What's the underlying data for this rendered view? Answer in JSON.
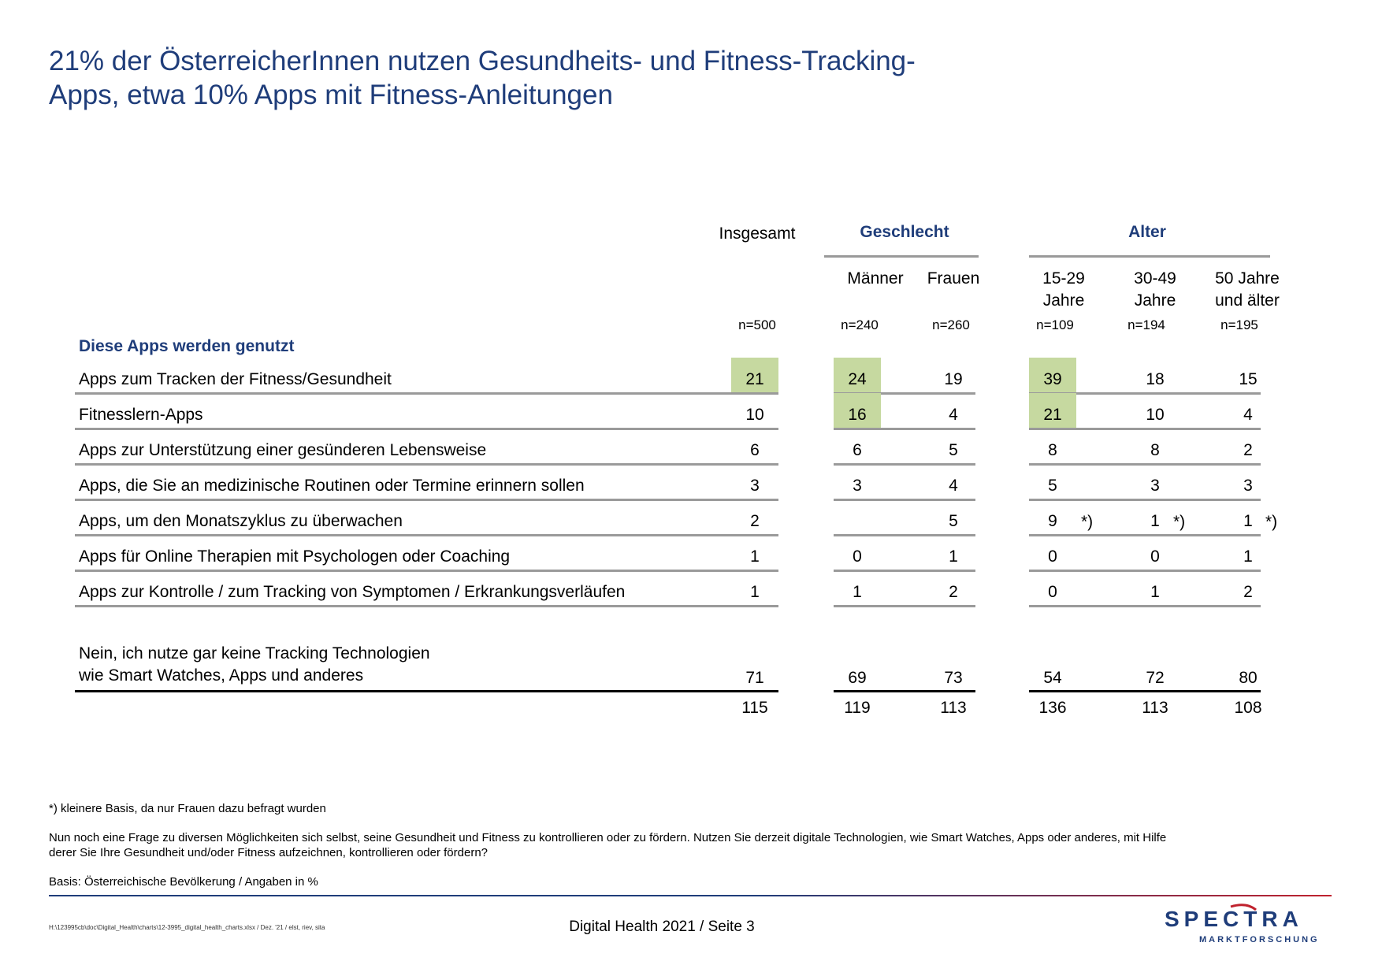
{
  "title": {
    "line1": "21% der ÖsterreicherInnen nutzen Gesundheits- und Fitness-Tracking-",
    "line2": "Apps, etwa 10% Apps mit Fitness-Anleitungen"
  },
  "table": {
    "groups": {
      "total": "Insgesamt",
      "gender": "Geschlecht",
      "age": "Alter"
    },
    "columns": [
      {
        "label1": "",
        "label2": "",
        "n": "n=500"
      },
      {
        "label1": "Männer",
        "label2": "",
        "n": "n=240"
      },
      {
        "label1": "Frauen",
        "label2": "",
        "n": "n=260"
      },
      {
        "label1": "15-29",
        "label2": "Jahre",
        "n": "n=109"
      },
      {
        "label1": "30-49",
        "label2": "Jahre",
        "n": "n=194"
      },
      {
        "label1": "50 Jahre",
        "label2": "und älter",
        "n": "n=195"
      }
    ],
    "section_title": "Diese Apps werden genutzt",
    "rows": [
      {
        "label": "Apps zum Tracken der Fitness/Gesundheit",
        "values": [
          "21",
          "24",
          "19",
          "39",
          "18",
          "15"
        ],
        "highlight": [
          true,
          true,
          false,
          true,
          false,
          false
        ]
      },
      {
        "label": "Fitnesslern-Apps",
        "values": [
          "10",
          "16",
          "4",
          "21",
          "10",
          "4"
        ],
        "highlight": [
          false,
          true,
          false,
          true,
          false,
          false
        ]
      },
      {
        "label": "Apps zur Unterstützung einer gesünderen Lebensweise",
        "values": [
          "6",
          "6",
          "5",
          "8",
          "8",
          "2"
        ]
      },
      {
        "label": "Apps, die Sie an medizinische Routinen oder Termine erinnern sollen",
        "values": [
          "3",
          "3",
          "4",
          "5",
          "3",
          "3"
        ]
      },
      {
        "label": "Apps, um den Monatszyklus zu überwachen",
        "values": [
          "2",
          "",
          "5",
          "9",
          "1",
          "1"
        ],
        "notes": [
          "",
          "",
          "",
          "*)",
          "*)",
          "*)"
        ]
      },
      {
        "label": "Apps für Online Therapien mit Psychologen oder Coaching",
        "values": [
          "1",
          "0",
          "1",
          "0",
          "0",
          "1"
        ]
      },
      {
        "label": "Apps zur Kontrolle / zum Tracking von Symptomen / Erkrankungsverläufen",
        "values": [
          "1",
          "1",
          "2",
          "0",
          "1",
          "2"
        ]
      }
    ],
    "none_row": {
      "label1": "Nein, ich nutze gar keine Tracking Technologien",
      "label2": "wie Smart Watches, Apps und anderes",
      "values": [
        "71",
        "69",
        "73",
        "54",
        "72",
        "80"
      ]
    },
    "totals": [
      "115",
      "119",
      "113",
      "136",
      "113",
      "108"
    ]
  },
  "footnotes": {
    "note": "*) kleinere Basis, da nur Frauen dazu befragt wurden",
    "question1": "Nun noch eine Frage zu diversen Möglichkeiten sich selbst, seine Gesundheit und Fitness zu kontrollieren oder zu fördern. Nutzen Sie derzeit digitale Technologien, wie Smart Watches, Apps oder anderes, mit Hilfe",
    "question2": "derer Sie Ihre Gesundheit und/oder Fitness aufzeichnen, kontrollieren oder fördern?",
    "basis": "Basis: Österreichische Bevölkerung / Angaben in %"
  },
  "footer": {
    "path": "H:\\123995cb\\doc\\Digital_Health\\charts\\12-3995_digital_health_charts.xlsx / Dez. '21 / elst, riev, sita",
    "page": "Digital Health 2021  /  Seite  3",
    "logo_main": "SPECTRA",
    "logo_sub": "MARKTFORSCHUNG",
    "colors": {
      "navy": "#1f3d7a",
      "red": "#c0222e",
      "highlight": "#c6d9a0"
    }
  }
}
